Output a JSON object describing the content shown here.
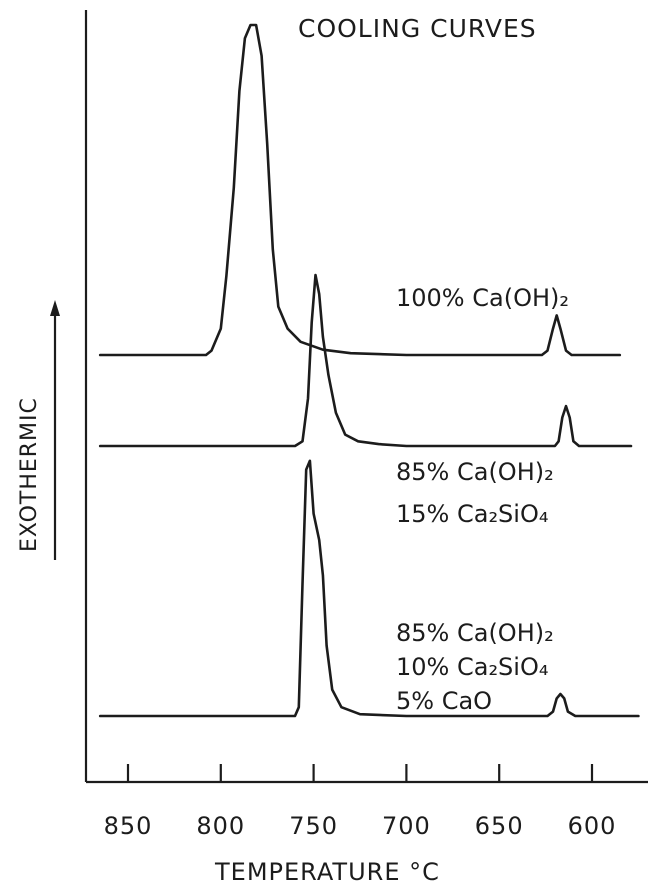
{
  "chart_data": {
    "type": "line",
    "title": "COOLING CURVES",
    "xlabel": "TEMPERATURE °C",
    "ylabel": "EXOTHERMIC",
    "x_ticks": [
      850,
      800,
      750,
      700,
      650,
      600
    ],
    "x_tick_labels": [
      "850",
      "800",
      "750",
      "700",
      "650",
      "600"
    ],
    "xlim": [
      870,
      575
    ],
    "x_reversed": true,
    "y_ticks_shown": false,
    "grid": false,
    "series": [
      {
        "label_lines": [
          "100% Ca(OH)₂"
        ],
        "points": [
          [
            865,
            0
          ],
          [
            808,
            0
          ],
          [
            805,
            0.05
          ],
          [
            800,
            0.3
          ],
          [
            797,
            0.9
          ],
          [
            793,
            1.9
          ],
          [
            790,
            3.0
          ],
          [
            787,
            3.6
          ],
          [
            784,
            3.75
          ],
          [
            781,
            3.75
          ],
          [
            778,
            3.4
          ],
          [
            775,
            2.4
          ],
          [
            772,
            1.2
          ],
          [
            769,
            0.55
          ],
          [
            764,
            0.3
          ],
          [
            757,
            0.15
          ],
          [
            745,
            0.06
          ],
          [
            730,
            0.02
          ],
          [
            700,
            0
          ],
          [
            627,
            0
          ],
          [
            624,
            0.05
          ],
          [
            621,
            0.3
          ],
          [
            619,
            0.45
          ],
          [
            617,
            0.3
          ],
          [
            614,
            0.05
          ],
          [
            611,
            0
          ],
          [
            585,
            0
          ]
        ]
      },
      {
        "label_lines": [
          "85% Ca(OH)₂",
          "15% Ca₂SiO₄"
        ],
        "points": [
          [
            865,
            0
          ],
          [
            760,
            0
          ],
          [
            756,
            0.05
          ],
          [
            753,
            0.5
          ],
          [
            751,
            1.3
          ],
          [
            749,
            1.8
          ],
          [
            747,
            1.6
          ],
          [
            745,
            1.15
          ],
          [
            742,
            0.75
          ],
          [
            738,
            0.35
          ],
          [
            733,
            0.12
          ],
          [
            726,
            0.05
          ],
          [
            715,
            0.02
          ],
          [
            700,
            0
          ],
          [
            620,
            0
          ],
          [
            618,
            0.05
          ],
          [
            616,
            0.3
          ],
          [
            614,
            0.42
          ],
          [
            612,
            0.3
          ],
          [
            610,
            0.05
          ],
          [
            607,
            0
          ],
          [
            579,
            0
          ]
        ]
      },
      {
        "label_lines": [
          "85% Ca(OH)₂",
          "10% Ca₂SiO₄",
          " 5% CaO"
        ],
        "points": [
          [
            865,
            0
          ],
          [
            760,
            0
          ],
          [
            758,
            0.1
          ],
          [
            756,
            1.5
          ],
          [
            754,
            2.8
          ],
          [
            752,
            2.9
          ],
          [
            750,
            2.3
          ],
          [
            747,
            2.0
          ],
          [
            745,
            1.6
          ],
          [
            743,
            0.8
          ],
          [
            740,
            0.3
          ],
          [
            735,
            0.1
          ],
          [
            725,
            0.02
          ],
          [
            700,
            0
          ],
          [
            624,
            0
          ],
          [
            621,
            0.05
          ],
          [
            619,
            0.2
          ],
          [
            617,
            0.25
          ],
          [
            615,
            0.2
          ],
          [
            613,
            0.05
          ],
          [
            609,
            0
          ],
          [
            575,
            0
          ]
        ]
      }
    ]
  }
}
